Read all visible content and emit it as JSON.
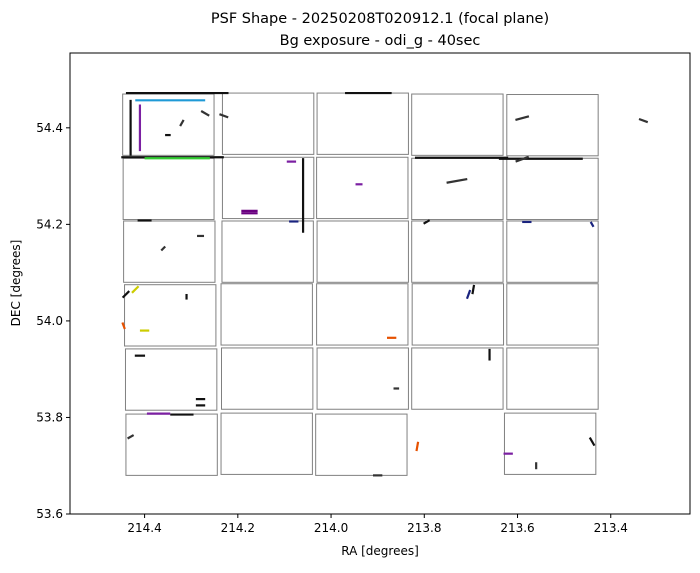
{
  "chart_data": {
    "type": "scatter",
    "title": "PSF Shape - 20250208T020912.1 (focal plane)",
    "subtitle": "Bg exposure - odi_g - 40sec",
    "xlabel": "RA [degrees]",
    "ylabel": "DEC [degrees]",
    "xlim": [
      214.56,
      213.23
    ],
    "ylim": [
      53.6,
      54.555
    ],
    "x_inverted": true,
    "xticks": [
      214.4,
      214.2,
      214.0,
      213.8,
      213.6,
      213.4
    ],
    "xtick_labels": [
      "214.4",
      "214.2",
      "214.0",
      "213.8",
      "213.6",
      "213.4"
    ],
    "yticks": [
      53.6,
      53.8,
      54.0,
      54.2,
      54.4
    ],
    "ytick_labels": [
      "53.6",
      "53.8",
      "54.0",
      "54.2",
      "54.4"
    ],
    "grid": false,
    "ota_outline_color": "#808080",
    "otas": [
      {
        "ra": [
          214.447,
          214.251
        ],
        "dec": [
          54.343,
          54.47
        ]
      },
      {
        "ra": [
          214.233,
          214.037
        ],
        "dec": [
          54.345,
          54.472
        ]
      },
      {
        "ra": [
          214.03,
          213.834
        ],
        "dec": [
          54.345,
          54.472
        ]
      },
      {
        "ra": [
          213.827,
          213.631
        ],
        "dec": [
          54.343,
          54.47
        ]
      },
      {
        "ra": [
          213.623,
          213.427
        ],
        "dec": [
          54.342,
          54.469
        ]
      },
      {
        "ra": [
          214.446,
          214.251
        ],
        "dec": [
          54.21,
          54.337
        ]
      },
      {
        "ra": [
          214.233,
          214.037
        ],
        "dec": [
          54.212,
          54.339
        ]
      },
      {
        "ra": [
          214.031,
          213.835
        ],
        "dec": [
          54.212,
          54.339
        ]
      },
      {
        "ra": [
          213.827,
          213.631
        ],
        "dec": [
          54.21,
          54.337
        ]
      },
      {
        "ra": [
          213.623,
          213.427
        ],
        "dec": [
          54.21,
          54.337
        ]
      },
      {
        "ra": [
          214.445,
          214.249
        ],
        "dec": [
          54.08,
          54.207
        ]
      },
      {
        "ra": [
          214.234,
          214.038
        ],
        "dec": [
          54.08,
          54.207
        ]
      },
      {
        "ra": [
          214.03,
          213.834
        ],
        "dec": [
          54.08,
          54.207
        ]
      },
      {
        "ra": [
          213.827,
          213.631
        ],
        "dec": [
          54.08,
          54.207
        ]
      },
      {
        "ra": [
          213.623,
          213.427
        ],
        "dec": [
          54.08,
          54.207
        ]
      },
      {
        "ra": [
          214.443,
          214.247
        ],
        "dec": [
          53.948,
          54.075
        ]
      },
      {
        "ra": [
          214.236,
          214.04
        ],
        "dec": [
          53.95,
          54.077
        ]
      },
      {
        "ra": [
          214.031,
          213.835
        ],
        "dec": [
          53.95,
          54.077
        ]
      },
      {
        "ra": [
          213.826,
          213.63
        ],
        "dec": [
          53.95,
          54.077
        ]
      },
      {
        "ra": [
          213.623,
          213.427
        ],
        "dec": [
          53.95,
          54.077
        ]
      },
      {
        "ra": [
          214.441,
          214.245
        ],
        "dec": [
          53.815,
          53.942
        ]
      },
      {
        "ra": [
          214.235,
          214.039
        ],
        "dec": [
          53.817,
          53.944
        ]
      },
      {
        "ra": [
          214.03,
          213.834
        ],
        "dec": [
          53.817,
          53.944
        ]
      },
      {
        "ra": [
          213.827,
          213.631
        ],
        "dec": [
          53.817,
          53.944
        ]
      },
      {
        "ra": [
          213.623,
          213.427
        ],
        "dec": [
          53.817,
          53.944
        ]
      },
      {
        "ra": [
          214.44,
          214.244
        ],
        "dec": [
          53.68,
          53.807
        ]
      },
      {
        "ra": [
          214.236,
          214.04
        ],
        "dec": [
          53.682,
          53.809
        ]
      },
      {
        "ra": [
          214.033,
          213.837
        ],
        "dec": [
          53.68,
          53.807
        ]
      },
      {
        "ra": [
          213.628,
          213.432
        ],
        "dec": [
          53.682,
          53.809
        ]
      }
    ],
    "psf_sticks": [
      {
        "ra": 214.33,
        "dec": 54.472,
        "len": 0.22,
        "angle": 0,
        "color": "#111111"
      },
      {
        "ra": 214.345,
        "dec": 54.457,
        "len": 0.15,
        "angle": 0,
        "color": "#1f9ad6"
      },
      {
        "ra": 214.43,
        "dec": 54.4,
        "len": 0.12,
        "angle": 90,
        "color": "#111111"
      },
      {
        "ra": 214.41,
        "dec": 54.4,
        "len": 0.1,
        "angle": 90,
        "color": "#7b1fa2"
      },
      {
        "ra": 214.34,
        "dec": 54.339,
        "len": 0.22,
        "angle": 0,
        "color": "#111111"
      },
      {
        "ra": 214.33,
        "dec": 54.337,
        "len": 0.14,
        "angle": 0,
        "color": "#33cc33"
      },
      {
        "ra": 214.23,
        "dec": 54.425,
        "len": 0.02,
        "angle": -20,
        "color": "#333333"
      },
      {
        "ra": 214.32,
        "dec": 54.41,
        "len": 0.015,
        "angle": 60,
        "color": "#333333"
      },
      {
        "ra": 214.27,
        "dec": 54.43,
        "len": 0.02,
        "angle": -30,
        "color": "#333333"
      },
      {
        "ra": 214.35,
        "dec": 54.385,
        "len": 0.012,
        "angle": 0,
        "color": "#111111"
      },
      {
        "ra": 214.06,
        "dec": 54.26,
        "len": 0.16,
        "angle": 90,
        "color": "#111111"
      },
      {
        "ra": 214.175,
        "dec": 54.228,
        "len": 0.035,
        "angle": 0,
        "color": "#6a0080"
      },
      {
        "ra": 214.175,
        "dec": 54.223,
        "len": 0.035,
        "angle": 0,
        "color": "#6a0080"
      },
      {
        "ra": 213.72,
        "dec": 54.338,
        "len": 0.2,
        "angle": 0,
        "color": "#111111"
      },
      {
        "ra": 213.55,
        "dec": 54.336,
        "len": 0.18,
        "angle": 0,
        "color": "#111111"
      },
      {
        "ra": 213.92,
        "dec": 54.472,
        "len": 0.1,
        "angle": 0,
        "color": "#111111"
      },
      {
        "ra": 213.73,
        "dec": 54.29,
        "len": 0.045,
        "angle": 10,
        "color": "#333333"
      },
      {
        "ra": 213.59,
        "dec": 54.335,
        "len": 0.03,
        "angle": 20,
        "color": "#333333"
      },
      {
        "ra": 213.59,
        "dec": 54.42,
        "len": 0.03,
        "angle": 15,
        "color": "#333333"
      },
      {
        "ra": 213.33,
        "dec": 54.415,
        "len": 0.02,
        "angle": -20,
        "color": "#333333"
      },
      {
        "ra": 214.085,
        "dec": 54.33,
        "len": 0.02,
        "angle": 0,
        "color": "#7b1fa2"
      },
      {
        "ra": 213.94,
        "dec": 54.283,
        "len": 0.015,
        "angle": 0,
        "color": "#7b1fa2"
      },
      {
        "ra": 214.4,
        "dec": 54.208,
        "len": 0.03,
        "angle": 0,
        "color": "#111111"
      },
      {
        "ra": 214.28,
        "dec": 54.176,
        "len": 0.015,
        "angle": 0,
        "color": "#333333"
      },
      {
        "ra": 214.36,
        "dec": 54.15,
        "len": 0.012,
        "angle": 45,
        "color": "#333333"
      },
      {
        "ra": 214.08,
        "dec": 54.206,
        "len": 0.02,
        "angle": 0,
        "color": "#1a237e"
      },
      {
        "ra": 213.795,
        "dec": 54.205,
        "len": 0.015,
        "angle": 30,
        "color": "#111111"
      },
      {
        "ra": 213.58,
        "dec": 54.205,
        "len": 0.02,
        "angle": 0,
        "color": "#1a237e"
      },
      {
        "ra": 213.44,
        "dec": 54.2,
        "len": 0.012,
        "angle": -60,
        "color": "#1a237e"
      },
      {
        "ra": 214.44,
        "dec": 54.055,
        "len": 0.02,
        "angle": 45,
        "color": "#111111"
      },
      {
        "ra": 214.42,
        "dec": 54.065,
        "len": 0.02,
        "angle": 45,
        "color": "#cccc00"
      },
      {
        "ra": 214.4,
        "dec": 53.98,
        "len": 0.02,
        "angle": 0,
        "color": "#cccc00"
      },
      {
        "ra": 214.445,
        "dec": 53.99,
        "len": 0.015,
        "angle": -70,
        "color": "#e65100"
      },
      {
        "ra": 214.31,
        "dec": 54.05,
        "len": 0.012,
        "angle": 90,
        "color": "#111111"
      },
      {
        "ra": 213.695,
        "dec": 54.065,
        "len": 0.02,
        "angle": 80,
        "color": "#111111"
      },
      {
        "ra": 213.705,
        "dec": 54.055,
        "len": 0.02,
        "angle": 70,
        "color": "#1a237e"
      },
      {
        "ra": 213.87,
        "dec": 53.965,
        "len": 0.02,
        "angle": 0,
        "color": "#e65100"
      },
      {
        "ra": 214.41,
        "dec": 53.928,
        "len": 0.022,
        "angle": 0,
        "color": "#111111"
      },
      {
        "ra": 214.28,
        "dec": 53.838,
        "len": 0.02,
        "angle": 0,
        "color": "#111111"
      },
      {
        "ra": 214.28,
        "dec": 53.825,
        "len": 0.02,
        "angle": 0,
        "color": "#111111"
      },
      {
        "ra": 214.32,
        "dec": 53.806,
        "len": 0.05,
        "angle": 0,
        "color": "#111111"
      },
      {
        "ra": 214.37,
        "dec": 53.808,
        "len": 0.05,
        "angle": 0,
        "color": "#7b1fa2"
      },
      {
        "ra": 213.66,
        "dec": 53.93,
        "len": 0.025,
        "angle": 90,
        "color": "#111111"
      },
      {
        "ra": 213.86,
        "dec": 53.86,
        "len": 0.012,
        "angle": 0,
        "color": "#333333"
      },
      {
        "ra": 214.43,
        "dec": 53.76,
        "len": 0.015,
        "angle": 30,
        "color": "#333333"
      },
      {
        "ra": 213.9,
        "dec": 53.68,
        "len": 0.02,
        "angle": 0,
        "color": "#333333"
      },
      {
        "ra": 213.815,
        "dec": 53.74,
        "len": 0.02,
        "angle": 80,
        "color": "#e65100"
      },
      {
        "ra": 213.62,
        "dec": 53.725,
        "len": 0.02,
        "angle": 0,
        "color": "#7b1fa2"
      },
      {
        "ra": 213.44,
        "dec": 53.75,
        "len": 0.02,
        "angle": -60,
        "color": "#111111"
      },
      {
        "ra": 213.56,
        "dec": 53.7,
        "len": 0.015,
        "angle": 90,
        "color": "#333333"
      }
    ]
  }
}
